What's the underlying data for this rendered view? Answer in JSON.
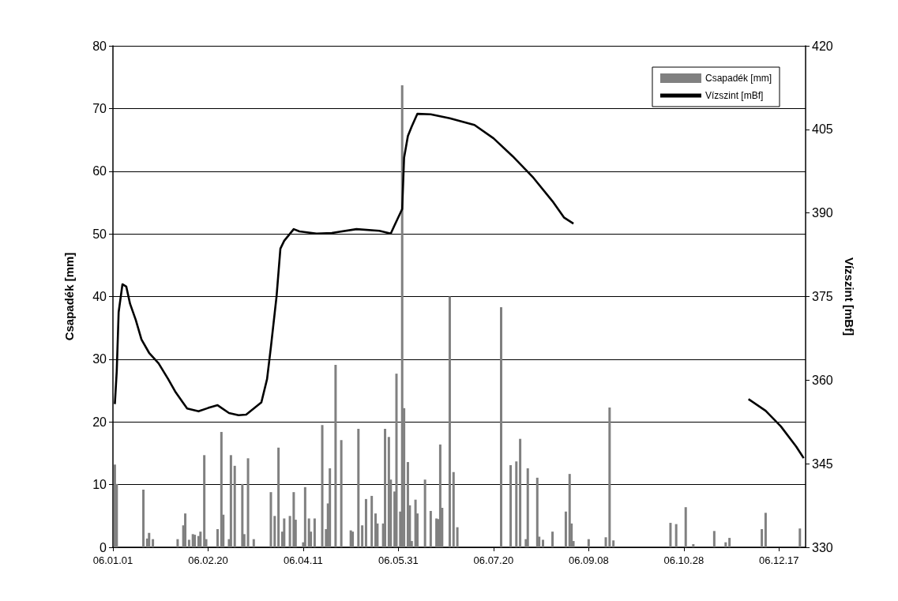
{
  "chart_data": {
    "type": "bar",
    "ylabel": "Csapadék [mm]",
    "y2label": "Vízszint [mBf]",
    "xlim": [
      "--01-01",
      "--12-31"
    ],
    "xticks": [
      {
        "value": "--01-01",
        "label": "06.01.01"
      },
      {
        "value": "--02-20",
        "label": "06.02.20"
      },
      {
        "value": "--04-11",
        "label": "06.04.11"
      },
      {
        "value": "--05-31",
        "label": "06.05.31"
      },
      {
        "value": "--07-20",
        "label": "06.07.20"
      },
      {
        "value": "--09-08",
        "label": "06.09.08"
      },
      {
        "value": "--10-28",
        "label": "06.10.28"
      },
      {
        "value": "--12-17",
        "label": "06.12.17"
      }
    ],
    "ylim": [
      0,
      80
    ],
    "yticks": [
      0,
      10,
      20,
      30,
      40,
      50,
      60,
      70,
      80
    ],
    "y2lim": [
      330,
      420
    ],
    "y2ticks": [
      330,
      345,
      360,
      375,
      390,
      405,
      420
    ],
    "grid": "y",
    "legend": "top right",
    "series": [
      {
        "name": "Csapadék [mm]",
        "color": "#808080",
        "x": [
          "--01-02",
          "--01-03",
          "--01-17",
          "--01-19",
          "--01-20",
          "--01-22",
          "--02-04",
          "--02-07",
          "--02-08",
          "--02-10",
          "--02-12",
          "--02-13",
          "--02-15",
          "--02-16",
          "--02-18",
          "--02-19",
          "--02-25",
          "--02-27",
          "--02-28",
          "--03-03",
          "--03-04",
          "--03-06",
          "--03-10",
          "--03-11",
          "--03-13",
          "--03-16",
          "--03-25",
          "--03-27",
          "--03-29",
          "--03-31",
          "--04-01",
          "--04-04",
          "--04-06",
          "--04-07",
          "--04-11",
          "--04-12",
          "--04-14",
          "--04-15",
          "--04-17",
          "--04-21",
          "--04-23",
          "--04-24",
          "--04-25",
          "--04-28",
          "--05-01",
          "--05-06",
          "--05-07",
          "--05-10",
          "--05-12",
          "--05-14",
          "--05-17",
          "--05-19",
          "--05-20",
          "--05-23",
          "--05-24",
          "--05-26",
          "--05-27",
          "--05-29",
          "--05-30",
          "--06-01",
          "--06-02",
          "--06-03",
          "--06-05",
          "--06-06",
          "--06-07",
          "--06-09",
          "--06-10",
          "--06-14",
          "--06-17",
          "--06-20",
          "--06-21",
          "--06-22",
          "--06-23",
          "--06-27",
          "--06-29",
          "--07-01",
          "--07-24",
          "--07-29",
          "--08-01",
          "--08-03",
          "--08-06",
          "--08-07",
          "--08-12",
          "--08-13",
          "--08-15",
          "--08-20",
          "--08-27",
          "--08-29",
          "--08-30",
          "--08-31",
          "--09-08",
          "--09-17",
          "--09-19",
          "--09-21",
          "--10-21",
          "--10-24",
          "--10-29",
          "--11-02",
          "--11-13",
          "--11-19",
          "--11-21",
          "--12-08",
          "--12-10",
          "--12-28"
        ],
        "values": [
          13.2,
          10.1,
          9.2,
          1.4,
          2.3,
          1.3,
          1.3,
          3.5,
          5.4,
          1.2,
          2.1,
          2,
          1.8,
          2.5,
          14.7,
          1.3,
          2.9,
          18.4,
          5.2,
          1.3,
          14.7,
          13,
          10.1,
          2.1,
          14.2,
          1.3,
          8.8,
          5,
          15.9,
          2.5,
          4.6,
          5,
          8.8,
          4.4,
          0.8,
          9.6,
          4.6,
          2.5,
          4.6,
          19.5,
          2.9,
          7,
          12.6,
          29.1,
          17.1,
          2.7,
          2.5,
          18.9,
          3.5,
          7.7,
          8.2,
          5.4,
          3.8,
          3.8,
          18.9,
          17.6,
          10.8,
          8.9,
          27.7,
          5.7,
          73.7,
          22.2,
          13.6,
          6.7,
          1,
          7.6,
          5.4,
          10.8,
          5.8,
          4.6,
          4.5,
          16.4,
          6.3,
          40,
          12,
          3.2,
          38.3,
          13.1,
          13.7,
          17.3,
          1.3,
          12.6,
          11.1,
          1.7,
          1.2,
          2.5,
          5.7,
          11.7,
          3.8,
          1,
          1.3,
          1.6,
          22.3,
          1.1,
          3.9,
          3.7,
          6.4,
          0.5,
          2.6,
          0.8,
          1.5,
          2.9,
          5.5,
          3
        ]
      },
      {
        "name": "Vízszint [mBf]",
        "type": "line",
        "axis": "y2",
        "color": "#000000",
        "x": [
          "--01-02",
          "--01-03",
          "--01-04",
          "--01-06",
          "--01-08",
          "--01-10",
          "--01-13",
          "--01-16",
          "--01-20",
          "--01-25",
          "--01-30",
          "--02-03",
          "--02-09",
          "--02-15",
          "--02-20",
          "--02-25",
          "--03-03",
          "--03-08",
          "--03-12",
          "--03-20",
          "--03-23",
          "--03-25",
          "--03-28",
          "--03-30",
          "--04-01",
          "--04-06",
          "--04-09",
          "--04-18",
          "--04-26",
          "--05-09",
          "--05-21",
          "--05-27",
          "--05-29",
          "--06-02",
          "--06-03",
          "--06-05",
          "--06-07",
          "--06-10",
          "--06-17",
          "--06-27",
          "--07-10",
          "--07-20",
          "--07-30",
          "--08-10",
          "--08-20",
          "--08-26",
          "--08-31",
          "--09-30",
          "--12-01",
          "--12-10",
          "--12-18",
          "--12-26",
          "--12-30"
        ],
        "values": [
          355.7,
          361.6,
          372.2,
          377.2,
          376.8,
          373.7,
          370.8,
          367.3,
          364.9,
          363,
          360.2,
          357.8,
          354.9,
          354.4,
          355,
          355.5,
          354.1,
          353.7,
          353.8,
          356,
          360.2,
          365.9,
          375.1,
          383.6,
          385,
          387.1,
          386.7,
          386.3,
          386.4,
          387.1,
          386.8,
          386.3,
          387.8,
          390.7,
          399.9,
          403.8,
          405.5,
          407.8,
          407.7,
          407,
          405.8,
          403.4,
          400.2,
          396.3,
          392.1,
          389.2,
          388.1,
          null,
          356.6,
          354.5,
          351.7,
          348.1,
          346
        ]
      }
    ]
  }
}
